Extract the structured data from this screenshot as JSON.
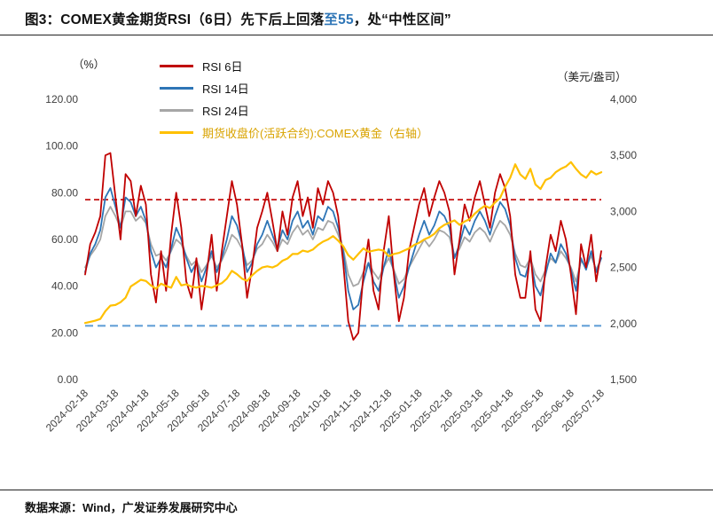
{
  "page": {
    "title_parts": [
      {
        "text": "图3：COMEX黄金期货RSI（6日）先下后上回落",
        "color": "#111111"
      },
      {
        "text": "至55",
        "color": "#2E75B6"
      },
      {
        "text": "，处“中性区间”",
        "color": "#111111"
      }
    ],
    "footer": "数据来源：Wind，广发证券发展研究中心"
  },
  "chart_data": {
    "type": "line",
    "title": "COMEX黄金期货RSI（6日）先下后上回落至55，处“中性区间”",
    "figure_label": "图3",
    "grid": false,
    "legend_position": "top-left",
    "left_axis": {
      "unit_label": "（%）",
      "lim": [
        0,
        120
      ],
      "ticks": [
        {
          "v": 120,
          "label": "120.00"
        },
        {
          "v": 100,
          "label": "100.00"
        },
        {
          "v": 80,
          "label": "80.00"
        },
        {
          "v": 60,
          "label": "60.00"
        },
        {
          "v": 40,
          "label": "40.00"
        },
        {
          "v": 20,
          "label": "20.00"
        },
        {
          "v": 0,
          "label": "0.00"
        }
      ]
    },
    "right_axis": {
      "unit_label": "（美元/盎司）",
      "lim": [
        1500,
        4000
      ],
      "ticks": [
        {
          "v": 4000,
          "label": "4,000"
        },
        {
          "v": 3500,
          "label": "3,500"
        },
        {
          "v": 3000,
          "label": "3,000"
        },
        {
          "v": 2500,
          "label": "2,500"
        },
        {
          "v": 2000,
          "label": "2,000"
        },
        {
          "v": 1500,
          "label": "1,500"
        }
      ]
    },
    "x_ticks": [
      "2024-02-18",
      "2024-03-18",
      "2024-04-18",
      "2024-05-18",
      "2024-06-18",
      "2024-07-18",
      "2024-08-18",
      "2024-09-18",
      "2024-10-18",
      "2024-11-18",
      "2024-12-18",
      "2025-01-18",
      "2025-02-18",
      "2025-03-18",
      "2025-04-18",
      "2025-05-18",
      "2025-06-18",
      "2025-07-18"
    ],
    "thresholds": [
      {
        "axis": "left",
        "value": 77,
        "color": "#C00000",
        "style": "dashed"
      },
      {
        "axis": "left",
        "value": 23,
        "color": "#5B9BD5",
        "style": "dashed"
      }
    ],
    "series": [
      {
        "id": "rsi-6",
        "name": "RSI 6日",
        "axis": "left",
        "color": "#C00000",
        "label_color": "#111111",
        "width": 1.8,
        "values": [
          45,
          58,
          63,
          70,
          96,
          97,
          78,
          60,
          88,
          85,
          70,
          83,
          75,
          45,
          33,
          55,
          38,
          62,
          80,
          65,
          42,
          35,
          52,
          30,
          45,
          62,
          38,
          55,
          70,
          85,
          75,
          58,
          35,
          48,
          65,
          72,
          80,
          68,
          55,
          72,
          62,
          78,
          85,
          70,
          78,
          65,
          82,
          75,
          85,
          80,
          70,
          50,
          25,
          17,
          20,
          45,
          60,
          38,
          30,
          55,
          70,
          45,
          25,
          35,
          55,
          65,
          75,
          82,
          70,
          78,
          85,
          80,
          72,
          45,
          60,
          75,
          68,
          78,
          85,
          75,
          65,
          80,
          88,
          82,
          70,
          45,
          35,
          35,
          55,
          30,
          25,
          48,
          62,
          55,
          68,
          60,
          45,
          28,
          58,
          48,
          62,
          42,
          55
        ]
      },
      {
        "id": "rsi-14",
        "name": "RSI 14日",
        "axis": "left",
        "color": "#2E75B6",
        "label_color": "#111111",
        "width": 1.8,
        "values": [
          46,
          54,
          58,
          64,
          78,
          82,
          74,
          65,
          78,
          76,
          70,
          74,
          68,
          55,
          48,
          52,
          48,
          56,
          65,
          60,
          52,
          46,
          50,
          42,
          48,
          55,
          46,
          52,
          60,
          70,
          66,
          58,
          46,
          50,
          58,
          62,
          68,
          62,
          56,
          64,
          60,
          68,
          72,
          65,
          68,
          62,
          70,
          68,
          74,
          72,
          65,
          55,
          38,
          30,
          32,
          42,
          50,
          42,
          38,
          48,
          56,
          46,
          35,
          40,
          48,
          55,
          62,
          68,
          62,
          66,
          72,
          70,
          65,
          52,
          58,
          66,
          62,
          68,
          72,
          68,
          62,
          70,
          76,
          73,
          66,
          52,
          45,
          44,
          52,
          40,
          36,
          45,
          54,
          50,
          58,
          54,
          47,
          38,
          52,
          47,
          55,
          46,
          52
        ]
      },
      {
        "id": "rsi-24",
        "name": "RSI 24日",
        "axis": "left",
        "color": "#A6A6A6",
        "label_color": "#111111",
        "width": 1.8,
        "values": [
          48,
          53,
          56,
          60,
          70,
          74,
          70,
          65,
          72,
          72,
          68,
          70,
          67,
          58,
          53,
          54,
          51,
          55,
          60,
          58,
          53,
          49,
          51,
          46,
          49,
          53,
          48,
          51,
          56,
          62,
          60,
          56,
          49,
          51,
          56,
          58,
          62,
          59,
          55,
          60,
          58,
          63,
          66,
          62,
          64,
          60,
          65,
          64,
          68,
          67,
          62,
          56,
          45,
          40,
          41,
          46,
          50,
          46,
          43,
          48,
          52,
          47,
          41,
          43,
          48,
          52,
          56,
          60,
          57,
          60,
          64,
          63,
          61,
          53,
          56,
          61,
          59,
          63,
          65,
          63,
          59,
          64,
          68,
          66,
          62,
          54,
          49,
          48,
          52,
          45,
          42,
          47,
          52,
          50,
          55,
          52,
          48,
          42,
          51,
          48,
          53,
          47,
          52
        ]
      },
      {
        "id": "gold-price",
        "name": "期货收盘价(活跃合约):COMEX黄金（右轴）",
        "axis": "right",
        "color": "#FFC000",
        "label_color": "#D9A300",
        "width": 2.2,
        "values": [
          2005,
          2015,
          2025,
          2040,
          2110,
          2160,
          2165,
          2190,
          2230,
          2330,
          2360,
          2390,
          2380,
          2340,
          2310,
          2355,
          2335,
          2320,
          2415,
          2340,
          2350,
          2330,
          2320,
          2335,
          2330,
          2320,
          2340,
          2360,
          2400,
          2470,
          2440,
          2400,
          2380,
          2430,
          2470,
          2500,
          2510,
          2500,
          2520,
          2560,
          2580,
          2620,
          2620,
          2650,
          2640,
          2660,
          2700,
          2730,
          2750,
          2780,
          2740,
          2690,
          2610,
          2570,
          2620,
          2670,
          2640,
          2650,
          2660,
          2650,
          2600,
          2620,
          2630,
          2650,
          2670,
          2700,
          2720,
          2750,
          2770,
          2800,
          2850,
          2880,
          2900,
          2920,
          2880,
          2910,
          2930,
          2980,
          3020,
          3050,
          3030,
          3080,
          3120,
          3220,
          3300,
          3420,
          3330,
          3290,
          3380,
          3240,
          3200,
          3280,
          3300,
          3350,
          3380,
          3400,
          3440,
          3380,
          3330,
          3300,
          3360,
          3330,
          3350
        ]
      }
    ]
  }
}
